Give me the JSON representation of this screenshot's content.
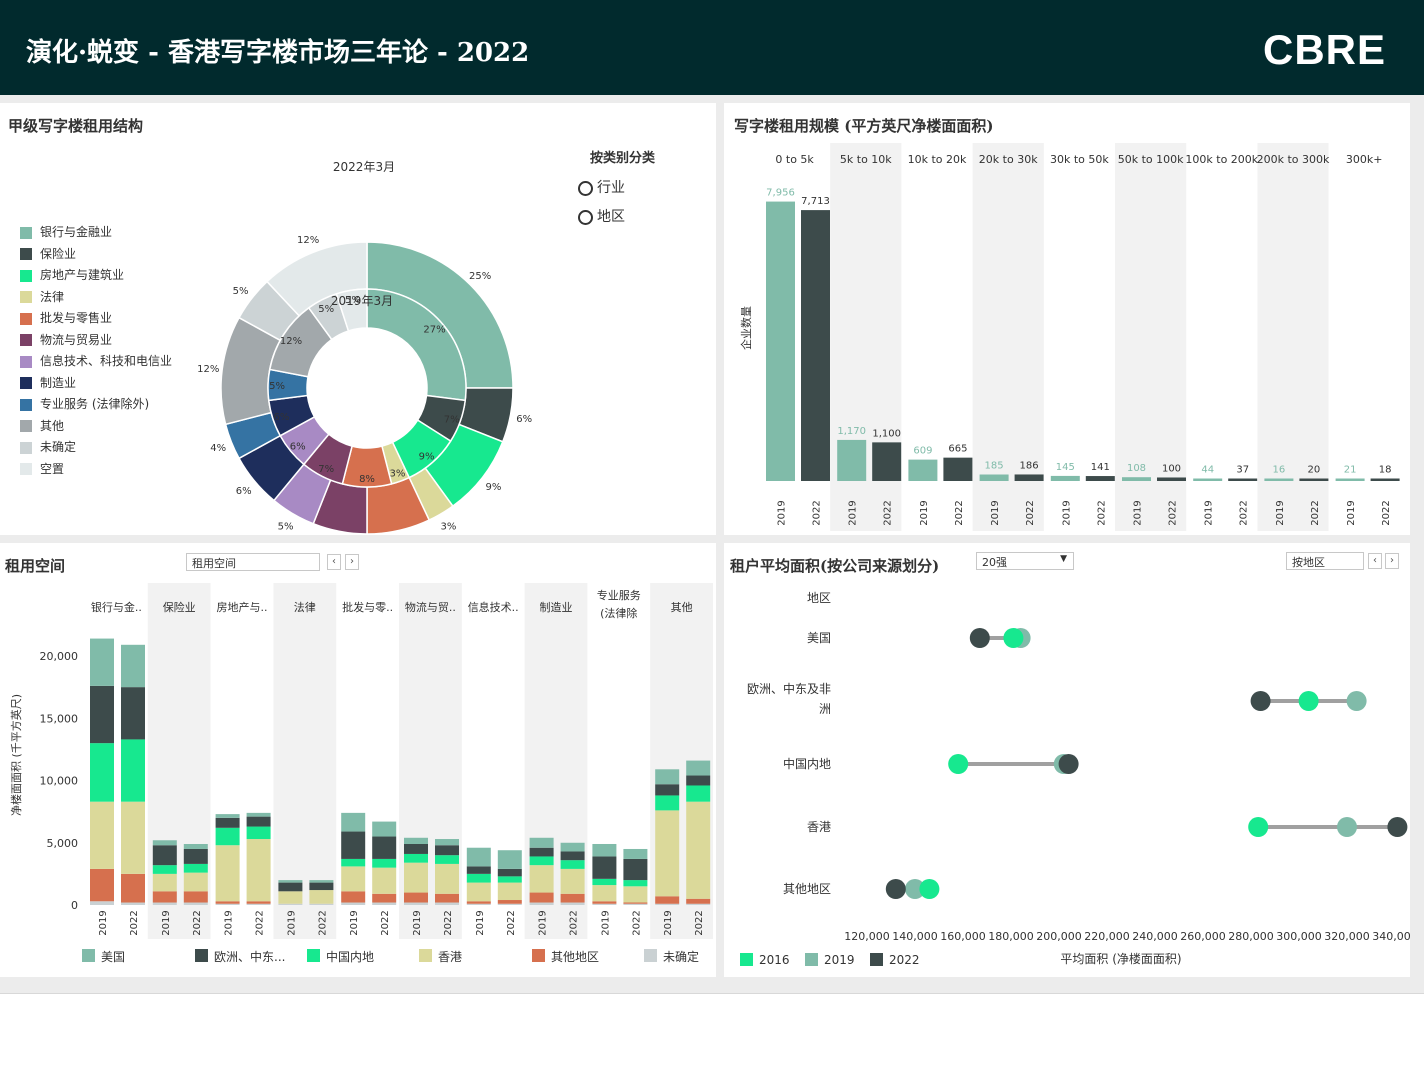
{
  "header": {
    "title": "演化·蜕变 - 香港写字楼市场三年论 - 2022",
    "logo": "CBRE"
  },
  "colors": {
    "header_bg": "#012a2d",
    "us": "#80bba9",
    "europe": "#3d4b4b",
    "china": "#17e88f",
    "hk": "#dbd99a",
    "other": "#d6704e",
    "undetermined": "#cad1d3",
    "c2019": "#80bba9",
    "c2022": "#3d4b4b",
    "c2016": "#17e88f"
  },
  "donut": {
    "title": "甲级写字楼租用结构",
    "outer_label": "2022年3月",
    "inner_label": "2019年3月",
    "radio_title": "按类别分类",
    "radio_options": [
      "行业",
      "地区"
    ],
    "legend": [
      {
        "label": "银行与金融业",
        "color": "#80bba9"
      },
      {
        "label": "保险业",
        "color": "#3d4b4b"
      },
      {
        "label": "房地产与建筑业",
        "color": "#17e88f"
      },
      {
        "label": "法律",
        "color": "#dbd99a"
      },
      {
        "label": "批发与零售业",
        "color": "#d6704e"
      },
      {
        "label": "物流与贸易业",
        "color": "#7b4166"
      },
      {
        "label": "信息技术、科技和电信业",
        "color": "#a88ac4"
      },
      {
        "label": "制造业",
        "color": "#1e2e5c"
      },
      {
        "label": "专业服务 (法律除外)",
        "color": "#3573a3"
      },
      {
        "label": "其他",
        "color": "#a2a8ab"
      },
      {
        "label": "未确定",
        "color": "#ccd3d5"
      },
      {
        "label": "空置",
        "color": "#e3e9ea"
      }
    ]
  },
  "size_panel": {
    "title": "写字楼租用规模 (平方英尺净楼面面积)",
    "ylabel": "企业数量"
  },
  "space_panel": {
    "title": "租用空间",
    "dropdown": "租用空间",
    "prev": "‹",
    "next": "›",
    "ylabel": "净楼面面积 (千平方英尺)"
  },
  "dumbbell_panel": {
    "title": "租户平均面积(按公司来源划分)",
    "dropdown": "20强",
    "region_dropdown": "按地区",
    "prev": "‹",
    "next": "›",
    "header_label": "地区",
    "xlabel": "平均面积 (净楼面面积)"
  },
  "chart_data": [
    {
      "type": "pie",
      "title": "甲级写字楼租用结构",
      "series": [
        {
          "name": "2022年3月",
          "labels": [
            "银行与金融业",
            "保险业",
            "房地产与建筑业",
            "法律",
            "批发与零售业",
            "物流与贸易业",
            "信息技术、科技和电信业",
            "制造业",
            "专业服务 (法律除外)",
            "其他",
            "未确定",
            "空置"
          ],
          "values": [
            25,
            6,
            9,
            3,
            7,
            6,
            5,
            6,
            4,
            12,
            5,
            12
          ],
          "value_labels": [
            "25%",
            "6%",
            "9%",
            "3%",
            "7%",
            "6%",
            "5%",
            "6%",
            "4%",
            "12%",
            "5%",
            "12%"
          ]
        },
        {
          "name": "2019年3月",
          "labels": [
            "银行与金融业",
            "保险业",
            "房地产与建筑业",
            "法律",
            "批发与零售业",
            "物流与贸易业",
            "信息技术、科技和电信业",
            "制造业",
            "专业服务 (法律除外)",
            "其他",
            "未确定",
            "空置"
          ],
          "values": [
            27,
            7,
            9,
            3,
            8,
            7,
            6,
            6,
            5,
            12,
            5,
            5
          ],
          "value_labels": [
            "27%",
            "7%",
            "9%",
            "3%",
            "8%",
            "7%",
            "6%",
            "6%",
            "5%",
            "12%",
            "5%",
            "5%"
          ]
        }
      ]
    },
    {
      "type": "bar",
      "title": "写字楼租用规模 (平方英尺净楼面面积)",
      "ylabel": "企业数量",
      "categories": [
        "0 to 5k",
        "5k to 10k",
        "10k to 20k",
        "20k to 30k",
        "30k to 50k",
        "50k to 100k",
        "100k to 200k",
        "200k to 300k",
        "300k+"
      ],
      "sub_labels": [
        "2019",
        "2022"
      ],
      "series": [
        {
          "name": "2019",
          "values": [
            7956,
            1170,
            609,
            185,
            145,
            108,
            44,
            16,
            21
          ],
          "labels": [
            "7,956",
            "1,170",
            "609",
            "185",
            "145",
            "108",
            "44",
            "16",
            "21"
          ]
        },
        {
          "name": "2022",
          "values": [
            7713,
            1100,
            665,
            186,
            141,
            100,
            37,
            20,
            18
          ],
          "labels": [
            "7,713",
            "1,100",
            "665",
            "186",
            "141",
            "100",
            "37",
            "20",
            "18"
          ]
        }
      ]
    },
    {
      "type": "bar",
      "title": "租用空间",
      "stacked": true,
      "ylabel": "净楼面面积 (千平方英尺)",
      "yticks": [
        0,
        5000,
        10000,
        15000,
        20000
      ],
      "ytick_labels": [
        "0",
        "5,000",
        "10,000",
        "15,000",
        "20,000"
      ],
      "ylim": [
        0,
        22000
      ],
      "categories": [
        [
          "银行与金.."
        ],
        [
          "保险业"
        ],
        [
          "房地产与.."
        ],
        [
          "法律"
        ],
        [
          "批发与零.."
        ],
        [
          "物流与贸.."
        ],
        [
          "信息技术.."
        ],
        [
          "制造业"
        ],
        [
          "专业服务",
          "(法律除"
        ],
        [
          "其他"
        ]
      ],
      "sub_labels": [
        "2019",
        "2022"
      ],
      "series": [
        {
          "name": "美国",
          "values": [
            [
              3800,
              3400
            ],
            [
              400,
              400
            ],
            [
              300,
              300
            ],
            [
              200,
              200
            ],
            [
              1500,
              1200
            ],
            [
              500,
              500
            ],
            [
              1500,
              1500
            ],
            [
              800,
              700
            ],
            [
              1000,
              800
            ],
            [
              1200,
              1200
            ]
          ]
        },
        {
          "name": "欧洲、中东...",
          "values": [
            [
              4600,
              4200
            ],
            [
              1600,
              1200
            ],
            [
              800,
              800
            ],
            [
              700,
              600
            ],
            [
              2200,
              1800
            ],
            [
              800,
              800
            ],
            [
              600,
              600
            ],
            [
              700,
              700
            ],
            [
              1800,
              1700
            ],
            [
              900,
              800
            ]
          ]
        },
        {
          "name": "中国内地",
          "values": [
            [
              4700,
              5000
            ],
            [
              700,
              700
            ],
            [
              1400,
              1000
            ],
            [
              0,
              0
            ],
            [
              600,
              700
            ],
            [
              700,
              700
            ],
            [
              700,
              500
            ],
            [
              700,
              700
            ],
            [
              500,
              500
            ],
            [
              1200,
              1300
            ]
          ]
        },
        {
          "name": "香港",
          "values": [
            [
              5400,
              5800
            ],
            [
              1400,
              1500
            ],
            [
              4500,
              5000
            ],
            [
              1000,
              1100
            ],
            [
              2000,
              2100
            ],
            [
              2400,
              2400
            ],
            [
              1500,
              1400
            ],
            [
              2200,
              2000
            ],
            [
              1300,
              1300
            ],
            [
              6900,
              7800
            ]
          ]
        },
        {
          "name": "其他地区",
          "values": [
            [
              2600,
              2300
            ],
            [
              900,
              900
            ],
            [
              200,
              200
            ],
            [
              0,
              0
            ],
            [
              900,
              700
            ],
            [
              800,
              700
            ],
            [
              200,
              300
            ],
            [
              800,
              700
            ],
            [
              200,
              100
            ],
            [
              600,
              400
            ]
          ]
        },
        {
          "name": "未确定",
          "values": [
            [
              300,
              200
            ],
            [
              200,
              200
            ],
            [
              100,
              100
            ],
            [
              100,
              100
            ],
            [
              200,
              200
            ],
            [
              200,
              200
            ],
            [
              100,
              100
            ],
            [
              200,
              200
            ],
            [
              100,
              100
            ],
            [
              100,
              100
            ]
          ]
        }
      ]
    },
    {
      "type": "scatter",
      "subtype": "dumbbell",
      "title": "租户平均面积(按公司来源划分)",
      "xlabel": "平均面积 (净楼面面积)",
      "xlim": [
        110000,
        350000
      ],
      "xticks": [
        120000,
        140000,
        160000,
        180000,
        200000,
        220000,
        240000,
        260000,
        280000,
        300000,
        320000,
        340000
      ],
      "xtick_labels": [
        "120,000",
        "140,000",
        "160,000",
        "180,000",
        "200,000",
        "220,000",
        "240,000",
        "260,000",
        "280,000",
        "300,000",
        "320,000",
        "340,000"
      ],
      "categories": [
        [
          "美国"
        ],
        [
          "欧洲、中东及非",
          "洲"
        ],
        [
          "中国内地"
        ],
        [
          "香港"
        ],
        [
          "其他地区"
        ]
      ],
      "series": [
        {
          "name": "2016",
          "values": [
            181000,
            304000,
            158000,
            283000,
            146000
          ]
        },
        {
          "name": "2019",
          "values": [
            184000,
            324000,
            202000,
            320000,
            140000
          ]
        },
        {
          "name": "2022",
          "values": [
            167000,
            284000,
            204000,
            341000,
            132000
          ]
        }
      ]
    }
  ]
}
